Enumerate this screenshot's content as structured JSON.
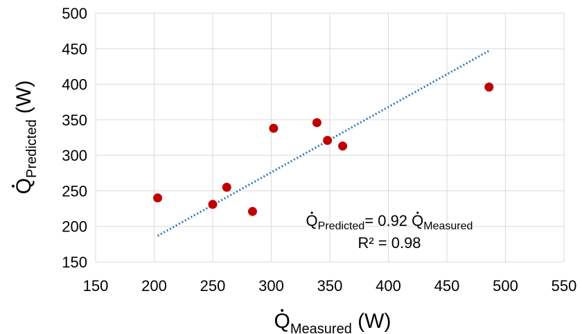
{
  "chart_data": {
    "type": "scatter",
    "xlabel": {
      "main": "Q",
      "sub": "Measured",
      "tail": " (W)"
    },
    "ylabel": {
      "main": "Q",
      "sub": "Predicted",
      "tail": " (W)"
    },
    "xlim": [
      150,
      550
    ],
    "ylim": [
      150,
      500
    ],
    "xticks": [
      150,
      200,
      250,
      300,
      350,
      400,
      450,
      500,
      550
    ],
    "yticks": [
      150,
      200,
      250,
      300,
      350,
      400,
      450,
      500
    ],
    "grid": true,
    "series": [
      {
        "marker_color": "#c00000",
        "points": [
          {
            "x": 203,
            "y": 240
          },
          {
            "x": 250,
            "y": 231
          },
          {
            "x": 262,
            "y": 255
          },
          {
            "x": 284,
            "y": 221
          },
          {
            "x": 302,
            "y": 338
          },
          {
            "x": 339,
            "y": 346
          },
          {
            "x": 348,
            "y": 321
          },
          {
            "x": 361,
            "y": 313
          },
          {
            "x": 486,
            "y": 396
          }
        ]
      }
    ],
    "trendline": {
      "style": "dotted",
      "color": "#2e75b6",
      "x_range": [
        203,
        486
      ],
      "slope": 0.92,
      "equation": {
        "lhs_main": "Q",
        "lhs_sub": "Predicted",
        "mid": "= 0.92 ",
        "rhs_main": "Q",
        "rhs_sub": "Measured"
      },
      "r2": "R² = 0.98"
    },
    "colors": {
      "grid": "#d9d9d9",
      "axis_text": "#000000"
    }
  }
}
